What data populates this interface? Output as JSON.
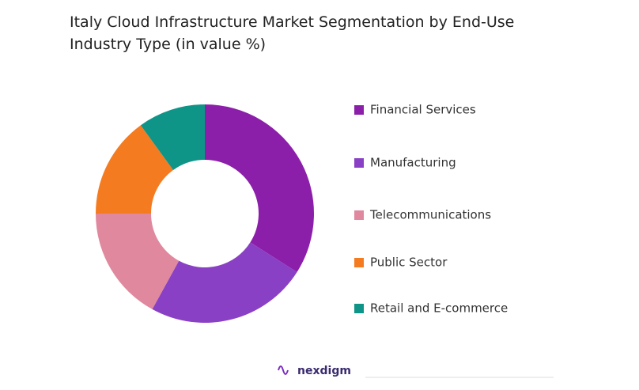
{
  "chart_data": {
    "type": "donut",
    "title": "Italy Cloud Infrastructure Market Segmentation by End-Use Industry Type (in value %)",
    "categories": [
      "Financial Services",
      "Manufacturing",
      "Telecommunications",
      "Public Sector",
      "Retail and E-commerce"
    ],
    "values": [
      34,
      24,
      17,
      15,
      10
    ],
    "colors": [
      "#8c1faa",
      "#8a40c4",
      "#e0889e",
      "#f47b20",
      "#0f9488"
    ],
    "legend": "right"
  },
  "brand": "nexdigm"
}
